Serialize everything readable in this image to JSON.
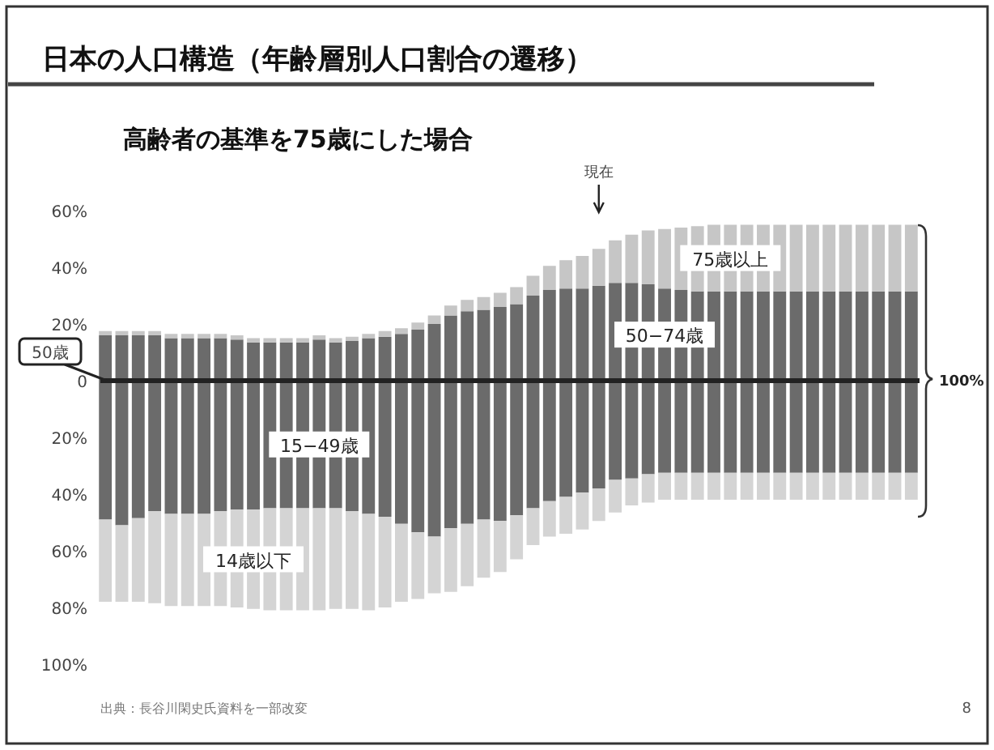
{
  "chart_data": {
    "type": "bar",
    "title": "日本の人口構造（年齢層別人口割合の遷移）",
    "subtitle": "高齢者の基準を75歳にした場合",
    "categories": [
      null,
      null,
      null,
      null,
      null,
      null,
      null,
      null,
      null,
      null,
      null,
      null,
      null,
      null,
      null,
      null,
      null,
      null,
      null,
      null,
      null,
      null,
      null,
      null,
      null,
      null,
      null,
      null,
      null,
      null,
      null,
      null,
      null,
      null,
      null,
      null,
      null,
      null,
      null,
      null,
      null,
      null,
      null,
      null,
      null,
      null,
      null,
      null,
      null,
      null
    ],
    "stacked": true,
    "series": [
      {
        "name": "50−74歳",
        "color": "#6b6b6b",
        "values": [
          16,
          16,
          16,
          16,
          15,
          15,
          15,
          15,
          14.5,
          13.5,
          13.5,
          13.5,
          13.5,
          14.5,
          13.5,
          14,
          15,
          15.5,
          16.5,
          18,
          20,
          23,
          24.5,
          25,
          26,
          27,
          30,
          32,
          32.5,
          32.5,
          33.5,
          34.5,
          34.5,
          34,
          32.5,
          32,
          31.5,
          31.5,
          31.5,
          31.5,
          31.5,
          31.5,
          31.5,
          31.5,
          31.5,
          31.5,
          31.5,
          31.5,
          31.5,
          31.5
        ]
      },
      {
        "name": "75歳以上",
        "color": "#c6c6c6",
        "values": [
          1.5,
          1.5,
          1.5,
          1.5,
          1.5,
          1.5,
          1.5,
          1.5,
          1.5,
          1.5,
          1.5,
          1.5,
          1.5,
          1.5,
          1.5,
          1.5,
          1.5,
          2,
          2,
          2.5,
          3,
          3.5,
          4,
          4.5,
          5,
          6,
          7,
          8.5,
          10,
          11.5,
          13,
          15,
          17,
          19,
          21,
          22,
          23,
          23.5,
          23.5,
          23.5,
          23.5,
          23.5,
          23.5,
          23.5,
          23.5,
          23.5,
          23.5,
          23.5,
          23.5,
          23.5
        ]
      },
      {
        "name": "15−49歳",
        "color": "#6b6b6b",
        "values": [
          -49,
          -51,
          -48.5,
          -46,
          -47,
          -47,
          -47,
          -46,
          -45.5,
          -45.5,
          -45,
          -45,
          -45,
          -45,
          -45,
          -46,
          -47,
          -48,
          -50.5,
          -53.5,
          -55,
          -52,
          -50.5,
          -49,
          -49.5,
          -47.5,
          -45,
          -42.5,
          -41,
          -39.5,
          -38,
          -35,
          -34.5,
          -33,
          -32.5,
          -32.5,
          -32.5,
          -32.5,
          -32.5,
          -32.5,
          -32.5,
          -32.5,
          -32.5,
          -32.5,
          -32.5,
          -32.5,
          -32.5,
          -32.5,
          -32.5,
          -32.5
        ]
      },
      {
        "name": "14歳以下",
        "color": "#d4d4d4",
        "values": [
          -29,
          -27,
          -29.5,
          -32.5,
          -32.5,
          -32.5,
          -32.5,
          -33.5,
          -34.5,
          -35,
          -36,
          -36,
          -36,
          -36,
          -35.5,
          -34.5,
          -34,
          -32,
          -27.5,
          -23.5,
          -20,
          -22.5,
          -22,
          -20.5,
          -18,
          -15.5,
          -13,
          -12.5,
          -13,
          -13,
          -11.5,
          -11.5,
          -9.5,
          -10,
          -9.5,
          -9.5,
          -9.5,
          -9.5,
          -9.5,
          -9.5,
          -9.5,
          -9.5,
          -9.5,
          -9.5,
          -9.5,
          -9.5,
          -9.5,
          -9.5,
          -9.5,
          -9.5
        ]
      }
    ],
    "ylim": [
      -100,
      60
    ],
    "yticks": [
      {
        "value": 60,
        "label": "60%"
      },
      {
        "value": 40,
        "label": "40%"
      },
      {
        "value": 20,
        "label": "20%"
      },
      0,
      {
        "value": -20,
        "label": "20%"
      },
      {
        "value": -40,
        "label": "40%"
      },
      {
        "value": -60,
        "label": "60%"
      },
      {
        "value": -80,
        "label": "80%"
      },
      {
        "value": -100,
        "label": "100%"
      }
    ],
    "annotations": [
      "50歳",
      "現在",
      "100%",
      "出典：長谷川閑史氏資料を一部改変",
      "8"
    ]
  }
}
